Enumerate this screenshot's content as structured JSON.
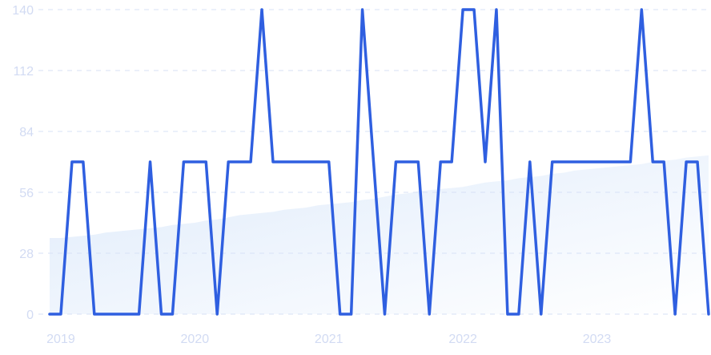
{
  "chart_data": {
    "type": "line",
    "title": "",
    "xlabel": "",
    "ylabel": "",
    "ylim": [
      0,
      140
    ],
    "yticks": [
      "0",
      "28",
      "56",
      "84",
      "112",
      "140"
    ],
    "xtick_labels": [
      {
        "label": "2019",
        "index": 1
      },
      {
        "label": "2020",
        "index": 13
      },
      {
        "label": "2021",
        "index": 25
      },
      {
        "label": "2022",
        "index": 37
      },
      {
        "label": "2023",
        "index": 49
      }
    ],
    "grid": true,
    "legend": "none",
    "series": [
      {
        "style": "area",
        "color": "#e1edfb",
        "values": [
          35,
          35,
          35.5,
          36,
          36.5,
          37.5,
          38,
          38.5,
          39,
          39.5,
          40,
          41,
          41.5,
          42,
          43,
          43.5,
          44.5,
          45.5,
          46,
          46.5,
          47,
          48,
          48.5,
          49,
          50,
          50.5,
          51,
          51.5,
          52.5,
          53,
          54,
          55,
          55.5,
          56.5,
          57,
          57.5,
          58,
          58.5,
          59.5,
          60.5,
          61,
          61.5,
          62.5,
          63,
          63.5,
          64.5,
          65,
          66,
          66.5,
          67,
          67.5,
          68,
          68.5,
          69,
          70,
          70.5,
          71,
          72,
          72.5,
          73
        ]
      },
      {
        "style": "line",
        "color": "#2f5fe0",
        "values": [
          0,
          0,
          70,
          70,
          0,
          0,
          0,
          0,
          0,
          70,
          0,
          0,
          70,
          70,
          70,
          0,
          70,
          70,
          70,
          140,
          70,
          70,
          70,
          70,
          70,
          70,
          0,
          0,
          140,
          70,
          0,
          70,
          70,
          70,
          0,
          70,
          70,
          140,
          140,
          70,
          140,
          0,
          0,
          70,
          0,
          70,
          70,
          70,
          70,
          70,
          70,
          70,
          70,
          140,
          70,
          70,
          0,
          70,
          70,
          0
        ]
      }
    ]
  }
}
